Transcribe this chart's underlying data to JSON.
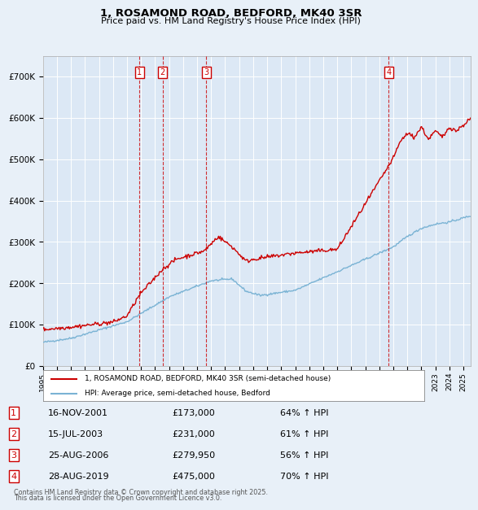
{
  "title_line1": "1, ROSAMOND ROAD, BEDFORD, MK40 3SR",
  "title_line2": "Price paid vs. HM Land Registry's House Price Index (HPI)",
  "bg_color": "#e8f0f8",
  "plot_bg_color": "#dce8f5",
  "grid_color": "#ffffff",
  "hpi_line_color": "#7ab3d4",
  "price_line_color": "#cc0000",
  "ylim": [
    0,
    750000
  ],
  "yticks": [
    0,
    100000,
    200000,
    300000,
    400000,
    500000,
    600000,
    700000
  ],
  "ytick_labels": [
    "£0",
    "£100K",
    "£200K",
    "£300K",
    "£400K",
    "£500K",
    "£600K",
    "£700K"
  ],
  "transactions": [
    {
      "num": 1,
      "date": "2001-11-16",
      "price": 173000,
      "x_year": 2001.878
    },
    {
      "num": 2,
      "date": "2003-07-15",
      "price": 231000,
      "x_year": 2003.537
    },
    {
      "num": 3,
      "date": "2006-08-25",
      "price": 279950,
      "x_year": 2006.648
    },
    {
      "num": 4,
      "date": "2019-08-28",
      "price": 475000,
      "x_year": 2019.66
    }
  ],
  "legend_line1": "1, ROSAMOND ROAD, BEDFORD, MK40 3SR (semi-detached house)",
  "legend_line2": "HPI: Average price, semi-detached house, Bedford",
  "footer_line1": "Contains HM Land Registry data © Crown copyright and database right 2025.",
  "footer_line2": "This data is licensed under the Open Government Licence v3.0.",
  "table_rows": [
    [
      "1",
      "16-NOV-2001",
      "£173,000",
      "64% ↑ HPI"
    ],
    [
      "2",
      "15-JUL-2003",
      "£231,000",
      "61% ↑ HPI"
    ],
    [
      "3",
      "25-AUG-2006",
      "£279,950",
      "56% ↑ HPI"
    ],
    [
      "4",
      "28-AUG-2019",
      "£475,000",
      "70% ↑ HPI"
    ]
  ],
  "xmin": 1995.0,
  "xmax": 2025.5
}
